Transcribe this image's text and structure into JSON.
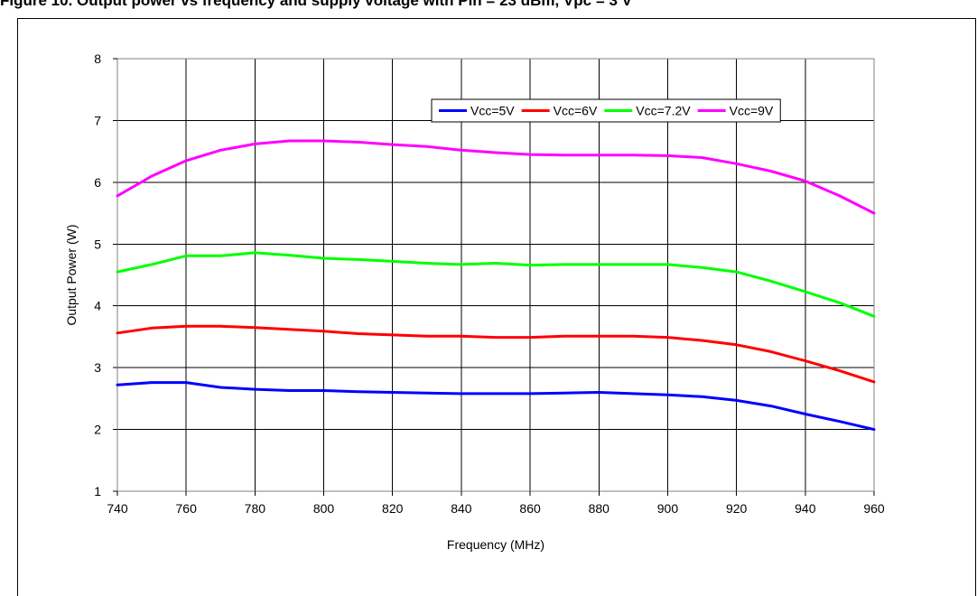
{
  "header": {
    "title": "Figure 10. Output power vs frequency and supply voltage with Pin = 23 dBm, Vpc = 3 V"
  },
  "chart_data": {
    "type": "line",
    "title": "",
    "xlabel": "Frequency (MHz)",
    "ylabel": "Output Power (W)",
    "xlim": [
      740,
      960
    ],
    "ylim": [
      1,
      8
    ],
    "xticks": [
      740,
      760,
      780,
      800,
      820,
      840,
      860,
      880,
      900,
      920,
      940,
      960
    ],
    "yticks": [
      1,
      2,
      3,
      4,
      5,
      6,
      7,
      8
    ],
    "grid": true,
    "legend_position": "top-right",
    "x": [
      740,
      750,
      760,
      770,
      780,
      790,
      800,
      810,
      820,
      830,
      840,
      850,
      860,
      870,
      880,
      890,
      900,
      910,
      920,
      930,
      940,
      950,
      960
    ],
    "series": [
      {
        "name": "Vcc=5V",
        "color": "#0000ff",
        "values": [
          2.72,
          2.76,
          2.76,
          2.68,
          2.65,
          2.63,
          2.63,
          2.61,
          2.6,
          2.59,
          2.58,
          2.58,
          2.58,
          2.59,
          2.6,
          2.58,
          2.56,
          2.53,
          2.47,
          2.38,
          2.25,
          2.13,
          2.0
        ]
      },
      {
        "name": "Vcc=6V",
        "color": "#ff0000",
        "values": [
          3.56,
          3.64,
          3.67,
          3.67,
          3.65,
          3.62,
          3.59,
          3.55,
          3.53,
          3.51,
          3.51,
          3.49,
          3.49,
          3.51,
          3.51,
          3.51,
          3.49,
          3.44,
          3.37,
          3.26,
          3.11,
          2.95,
          2.77
        ]
      },
      {
        "name": "Vcc=7.2V",
        "color": "#00ff00",
        "values": [
          4.55,
          4.67,
          4.81,
          4.81,
          4.86,
          4.82,
          4.77,
          4.75,
          4.72,
          4.69,
          4.67,
          4.69,
          4.66,
          4.67,
          4.67,
          4.67,
          4.67,
          4.62,
          4.55,
          4.4,
          4.23,
          4.05,
          3.83
        ]
      },
      {
        "name": "Vcc=9V",
        "color": "#ff00ff",
        "values": [
          5.78,
          6.1,
          6.35,
          6.52,
          6.62,
          6.67,
          6.67,
          6.65,
          6.61,
          6.58,
          6.52,
          6.48,
          6.45,
          6.44,
          6.44,
          6.44,
          6.43,
          6.4,
          6.3,
          6.18,
          6.02,
          5.78,
          5.5
        ]
      }
    ]
  }
}
